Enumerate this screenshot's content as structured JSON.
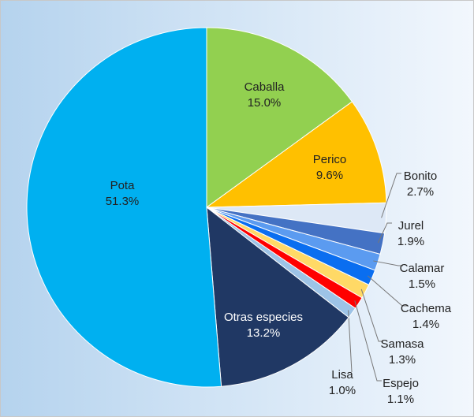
{
  "chart_data": {
    "type": "pie",
    "categories": [
      "Caballa",
      "Perico",
      "Bonito",
      "Jurel",
      "Calamar",
      "Cachema",
      "Samasa",
      "Espejo",
      "Lisa",
      "Otras especies",
      "Pota"
    ],
    "values": [
      15.0,
      9.6,
      2.7,
      1.9,
      1.5,
      1.4,
      1.3,
      1.1,
      1.0,
      13.2,
      51.3
    ],
    "value_labels": [
      "15.0%",
      "9.6%",
      "2.7%",
      "1.9%",
      "1.5%",
      "1.4%",
      "1.3%",
      "1.1%",
      "1.0%",
      "13.2%",
      "51.3%"
    ],
    "colors": [
      "#92d050",
      "#ffc000",
      "#dde8f6",
      "#4472c4",
      "#5b9bf0",
      "#0a6ef0",
      "#ffd966",
      "#ff0000",
      "#9dc3e6",
      "#203864",
      "#00b0f0"
    ]
  }
}
